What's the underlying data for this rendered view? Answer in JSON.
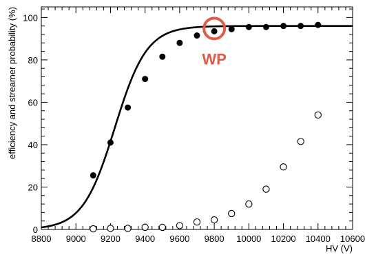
{
  "chart_data": {
    "type": "scatter",
    "xlabel": "HV (V)",
    "ylabel": "efficiency and streamer probability (%)",
    "xlim": [
      8800,
      10600
    ],
    "ylim": [
      0,
      105
    ],
    "x_ticks": [
      "8800",
      "9000",
      "9200",
      "9400",
      "9600",
      "9800",
      "10000",
      "10200",
      "10400",
      "10600"
    ],
    "y_ticks": [
      "0",
      "20",
      "40",
      "60",
      "80",
      "100"
    ],
    "grid": false,
    "series": [
      {
        "marker": "filled-circle",
        "points": [
          [
            9100,
            25.5
          ],
          [
            9200,
            41
          ],
          [
            9300,
            57.5
          ],
          [
            9400,
            71
          ],
          [
            9500,
            81.5
          ],
          [
            9600,
            88
          ],
          [
            9700,
            91.5
          ],
          [
            9800,
            93.5
          ],
          [
            9900,
            94.5
          ],
          [
            10000,
            95.5
          ],
          [
            10100,
            95.5
          ],
          [
            10200,
            96
          ],
          [
            10300,
            96
          ],
          [
            10400,
            96.5
          ]
        ]
      },
      {
        "marker": "open-circle",
        "points": [
          [
            9100,
            0.3
          ],
          [
            9200,
            0.5
          ],
          [
            9300,
            0.5
          ],
          [
            9400,
            1
          ],
          [
            9500,
            1
          ],
          [
            9600,
            1.8
          ],
          [
            9700,
            3.5
          ],
          [
            9800,
            4.5
          ],
          [
            9900,
            7.5
          ],
          [
            10000,
            12
          ],
          [
            10100,
            19
          ],
          [
            10200,
            29.5
          ],
          [
            10300,
            41.5
          ],
          [
            10400,
            54
          ]
        ]
      }
    ],
    "fit_curve": {
      "type": "sigmoid",
      "plateau": 96,
      "midpoint": 9225,
      "slope": 0.0108,
      "x_range": [
        8800,
        10600
      ],
      "color": "#000000"
    },
    "annotation": {
      "text": "WP",
      "x": 9800,
      "y": 93.5,
      "color": "#e15b47"
    }
  }
}
